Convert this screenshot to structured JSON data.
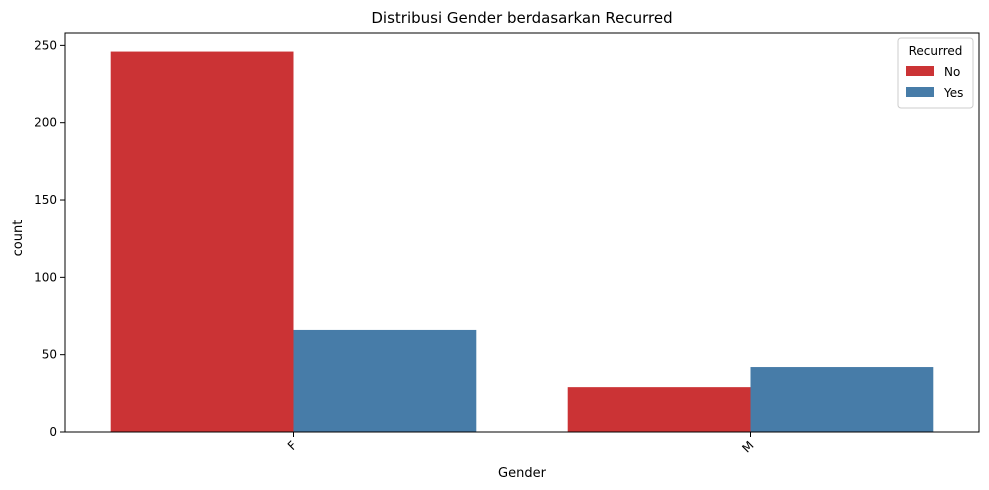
{
  "chart_data": {
    "type": "bar",
    "title": "Distribusi Gender berdasarkan Recurred",
    "xlabel": "Gender",
    "ylabel": "count",
    "categories": [
      "F",
      "M"
    ],
    "series": [
      {
        "name": "No",
        "values": [
          246,
          29
        ]
      },
      {
        "name": "Yes",
        "values": [
          66,
          42
        ]
      }
    ],
    "colors": [
      "#cb3335",
      "#477ca8"
    ],
    "ylim": [
      0,
      258
    ],
    "yticks": [
      0,
      50,
      100,
      150,
      200,
      250
    ],
    "xtick_rotation_deg": 45,
    "grid": false,
    "legend": {
      "title": "Recurred",
      "position": "top-right"
    }
  }
}
